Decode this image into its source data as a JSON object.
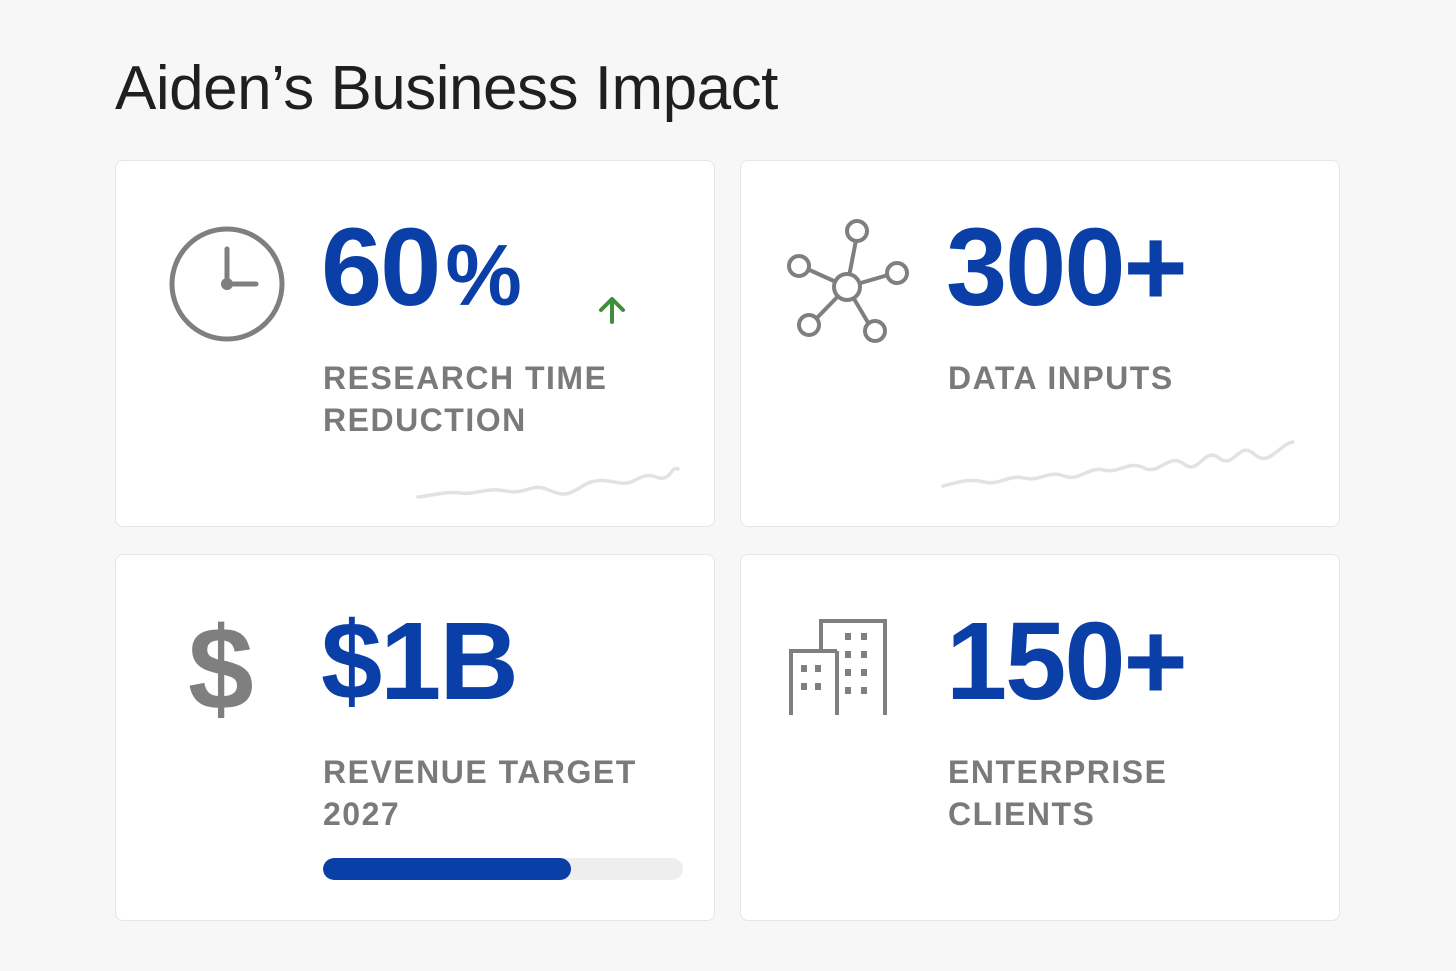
{
  "page": {
    "title": "Aiden’s Business Impact"
  },
  "colors": {
    "accent": "#0b3fa8",
    "icon_gray": "#7f7f7f",
    "label_gray": "#7a7a7a",
    "trend_up": "#3f8f3a",
    "sparkline": "#e2e2e2"
  },
  "cards": {
    "research": {
      "icon": "clock-icon",
      "value": "60",
      "value_suffix": "%",
      "trend_icon": "arrow-up-icon",
      "label_line1": "RESEARCH TIME",
      "label_line2": "REDUCTION"
    },
    "data": {
      "icon": "network-icon",
      "value": "300+",
      "label_line1": "DATA INPUTS"
    },
    "revenue": {
      "icon": "dollar-icon",
      "icon_glyph": "$",
      "value": "$1B",
      "label_line1": "REVENUE TARGET",
      "label_line2": "2027",
      "progress": 0.69
    },
    "clients": {
      "icon": "buildings-icon",
      "value": "150+",
      "label_line1": "ENTERPRISE",
      "label_line2": "CLIENTS"
    }
  }
}
